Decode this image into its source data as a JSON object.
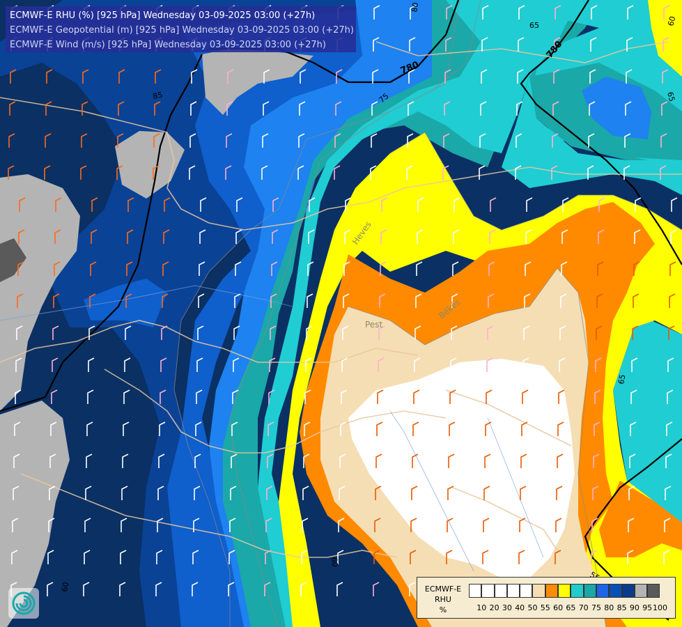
{
  "header": {
    "line1": "ECMWF-E RHU (%) [925 hPa] Wednesday 03-09-2025 03:00 (+27h)",
    "line2": "ECMWF-E Geopotential (m) [925 hPa] Wednesday 03-09-2025 03:00 (+27h)",
    "line3": "ECMWF-E Wind (m/s) [925 hPa] Wednesday 03-09-2025 03:00 (+27h)"
  },
  "legend": {
    "title_line1": "ECMWF-E",
    "title_line2": "RHU",
    "title_line3": "%",
    "ticks": [
      "10",
      "20",
      "30",
      "40",
      "50",
      "55",
      "60",
      "65",
      "70",
      "75",
      "80",
      "85",
      "90",
      "95",
      "100"
    ],
    "colors": [
      "#ffffff",
      "#ffffff",
      "#ffffff",
      "#ffffff",
      "#ffffff",
      "#f5deb3",
      "#ff8c00",
      "#ffff00",
      "#20cccc",
      "#1aa8a8",
      "#1e64e6",
      "#0a50b4",
      "#0a3c8c",
      "#b4b4b4",
      "#5a5a5a"
    ]
  },
  "map": {
    "contour_labels": [
      "80",
      "780",
      "780",
      "75",
      "65",
      "65",
      "60",
      "85",
      "65",
      "55",
      "60",
      "60"
    ],
    "place_labels": [
      "Pest",
      "Heves",
      "Békés"
    ],
    "icon": "ecmwf-logo-icon",
    "colors": {
      "rh_100": "#5a5a5a",
      "rh_95": "#b4b4b4",
      "rh_90": "#0a3064",
      "rh_85": "#0a4296",
      "rh_80": "#0f5fcc",
      "rh_75": "#1e82f0",
      "rh_70": "#1ba8a8",
      "rh_65": "#20cdd2",
      "rh_60": "#ffff00",
      "rh_55": "#ff8a00",
      "rh_50": "#f5deb3",
      "rh_low": "#ffffff"
    }
  }
}
